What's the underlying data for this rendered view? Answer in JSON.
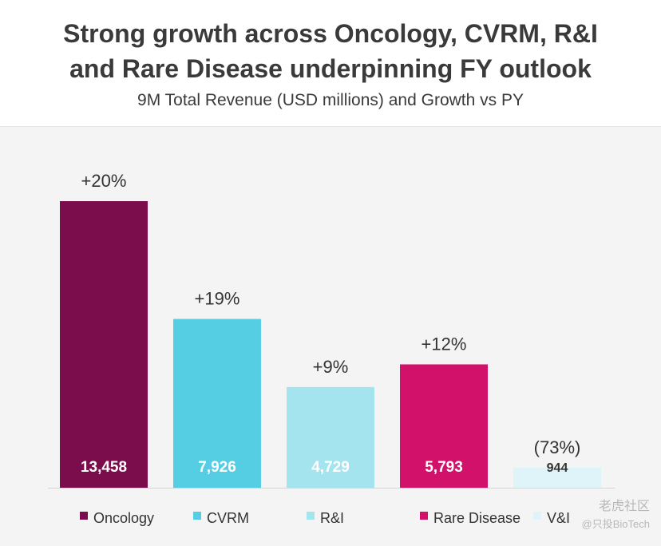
{
  "header": {
    "title_line1": "Strong growth across Oncology, CVRM, R&I",
    "title_line2": "and Rare Disease underpinning FY outlook",
    "subtitle": "9M Total Revenue (USD millions) and Growth vs PY"
  },
  "chart_data": {
    "type": "bar",
    "title": "Strong growth across Oncology, CVRM, R&I and Rare Disease underpinning FY outlook",
    "subtitle": "9M Total Revenue (USD millions) and Growth vs PY",
    "categories": [
      "Oncology",
      "CVRM",
      "R&I",
      "Rare Disease",
      "V&I"
    ],
    "values": [
      13458,
      7926,
      4729,
      5793,
      944
    ],
    "value_labels": [
      "13,458",
      "7,926",
      "4,729",
      "5,793",
      "944"
    ],
    "growth_labels": [
      "+20%",
      "+19%",
      "+9%",
      "+12%",
      "(73%)"
    ],
    "colors": [
      "#7b0d4d",
      "#55cde3",
      "#a4e4ef",
      "#d1116a",
      "#dff4f9"
    ],
    "value_label_colors": [
      "#ffffff",
      "#ffffff",
      "#ffffff",
      "#ffffff",
      "#333333"
    ],
    "ylim": [
      0,
      13458
    ],
    "grid": false,
    "legend_position": "bottom",
    "xlabel": "",
    "ylabel": ""
  },
  "watermark": {
    "line1": "老虎社区",
    "line2": "@只投BioTech"
  }
}
